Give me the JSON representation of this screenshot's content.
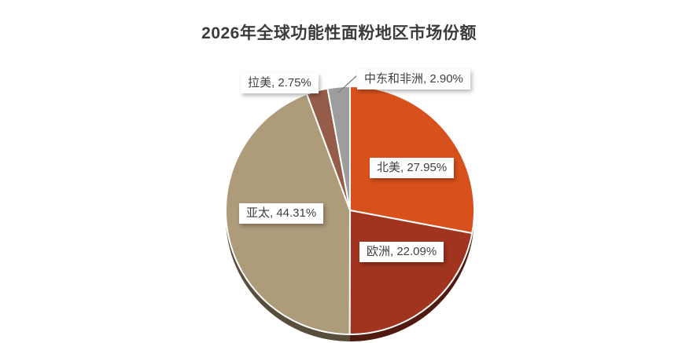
{
  "chart_data": {
    "type": "pie",
    "title": "2026年全球功能性面粉地区市场份额",
    "direction": "clockwise",
    "start_angle_deg": 0,
    "legend": "none",
    "label_style": "callout-boxes",
    "background": "#ffffff",
    "slices": [
      {
        "id": "north-america",
        "label": "北美",
        "value": 27.95,
        "display": "北美, 27.95%",
        "color": "#D8511D"
      },
      {
        "id": "europe",
        "label": "欧洲",
        "value": 22.09,
        "display": "欧洲, 22.09%",
        "color": "#A0341F"
      },
      {
        "id": "asia-pacific",
        "label": "亚太",
        "value": 44.31,
        "display": "亚太, 44.31%",
        "color": "#AD9B7A"
      },
      {
        "id": "latam",
        "label": "拉美",
        "value": 2.75,
        "display": "拉美, 2.75%",
        "color": "#955C49"
      },
      {
        "id": "mea",
        "label": "中东和非洲",
        "value": 2.9,
        "display": "中东和非洲, 2.90%",
        "color": "#9D9D9D"
      }
    ]
  }
}
